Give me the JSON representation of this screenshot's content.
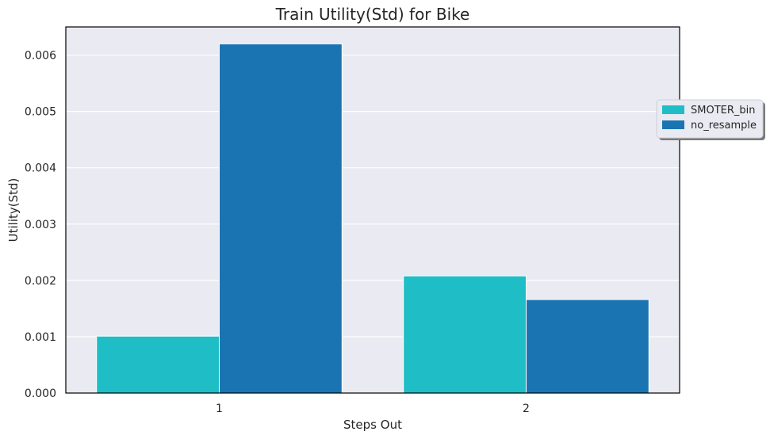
{
  "chart_data": {
    "type": "bar",
    "title": "Train Utility(Std) for Bike",
    "xlabel": "Steps Out",
    "ylabel": "Utility(Std)",
    "categories": [
      "1",
      "2"
    ],
    "series": [
      {
        "name": "SMOTER_bin",
        "values": [
          0.00101,
          0.00208
        ],
        "color": "#1fbec6"
      },
      {
        "name": "no_resample",
        "values": [
          0.0062,
          0.00166
        ],
        "color": "#1b74b2"
      }
    ],
    "ylim": [
      0,
      0.0065
    ],
    "yticks": [
      "0.000",
      "0.001",
      "0.002",
      "0.003",
      "0.004",
      "0.005",
      "0.006"
    ],
    "ytick_values": [
      0,
      0.001,
      0.002,
      0.003,
      0.004,
      0.005,
      0.006
    ],
    "grid": true,
    "legend_position": "right, outside plot area",
    "colors": {
      "plot_background": "#eaeaf2",
      "grid": "#ffffff",
      "frame": "#000000"
    }
  }
}
